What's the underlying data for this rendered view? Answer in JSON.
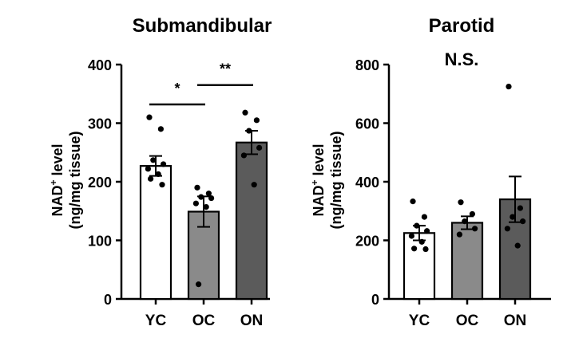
{
  "chart_data": [
    {
      "type": "bar",
      "title": "Submandibular",
      "ylabel_line1": "NAD",
      "ylabel_sup": "+",
      "ylabel_line1_rest": " level",
      "ylabel_line2": "(ng/mg tissue)",
      "categories": [
        "YC",
        "OC",
        "ON"
      ],
      "values": [
        227,
        149,
        267
      ],
      "errors": [
        17,
        26,
        20
      ],
      "bar_colors": [
        "#ffffff",
        "#8a8a8a",
        "#5b5b5b"
      ],
      "points": [
        [
          310,
          290,
          237,
          230,
          222,
          213,
          205,
          195
        ],
        [
          190,
          180,
          174,
          172,
          163,
          157,
          25
        ],
        [
          318,
          305,
          287,
          258,
          245,
          195
        ]
      ],
      "ylim": [
        0,
        400
      ],
      "yticks": [
        0,
        100,
        200,
        300,
        400
      ],
      "significance": [
        {
          "from": 0,
          "to": 1,
          "y": 332,
          "label": "*"
        },
        {
          "from": 1,
          "to": 2,
          "y": 365,
          "label": "**"
        }
      ],
      "annotation": ""
    },
    {
      "type": "bar",
      "title": "Parotid",
      "ylabel_line1": "NAD",
      "ylabel_sup": "+",
      "ylabel_line1_rest": " level",
      "ylabel_line2": "(ng/mg tissue)",
      "categories": [
        "YC",
        "OC",
        "ON"
      ],
      "values": [
        225,
        260,
        340
      ],
      "errors": [
        25,
        22,
        78
      ],
      "bar_colors": [
        "#ffffff",
        "#8a8a8a",
        "#5b5b5b"
      ],
      "points": [
        [
          333,
          280,
          250,
          232,
          215,
          195,
          172,
          170
        ],
        [
          330,
          290,
          265,
          240,
          220
        ],
        [
          725,
          310,
          280,
          265,
          240,
          182
        ]
      ],
      "ylim": [
        0,
        800
      ],
      "yticks": [
        0,
        200,
        400,
        600,
        800
      ],
      "significance": [],
      "annotation": "N.S."
    }
  ]
}
